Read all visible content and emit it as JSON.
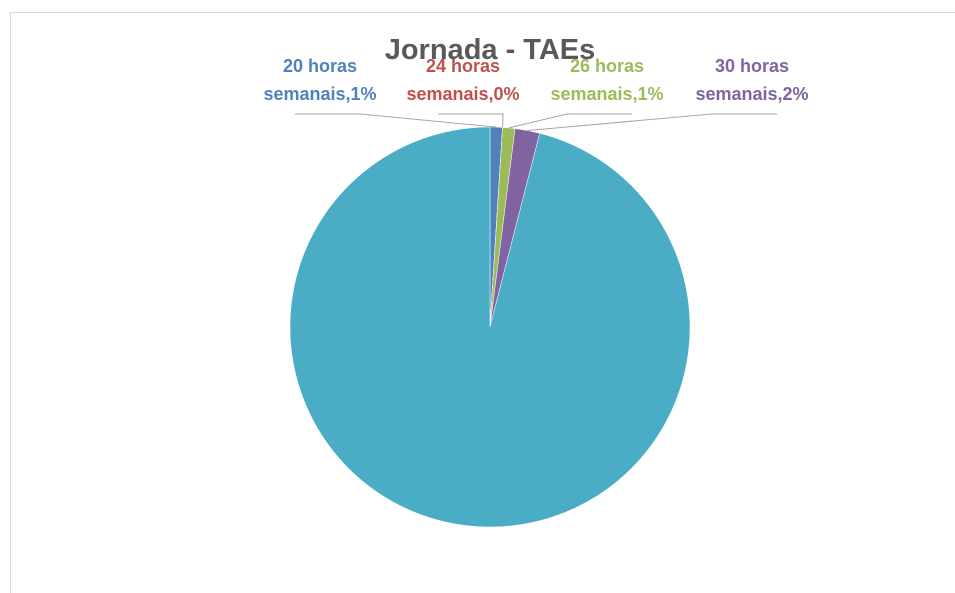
{
  "chart_data": {
    "type": "pie",
    "title": "Jornada - TAEs",
    "categories": [
      "20 horas semanais",
      "24 horas semanais",
      "26 horas semanais",
      "30 horas semanais",
      null
    ],
    "values": [
      1,
      0,
      1,
      2,
      96
    ],
    "value_labels": [
      "1%",
      "0%",
      "1%",
      "2%",
      null
    ],
    "colors": [
      "#4f81bd",
      "#c0504d",
      "#9bbb59",
      "#8064a2",
      "#4bacc6"
    ]
  }
}
